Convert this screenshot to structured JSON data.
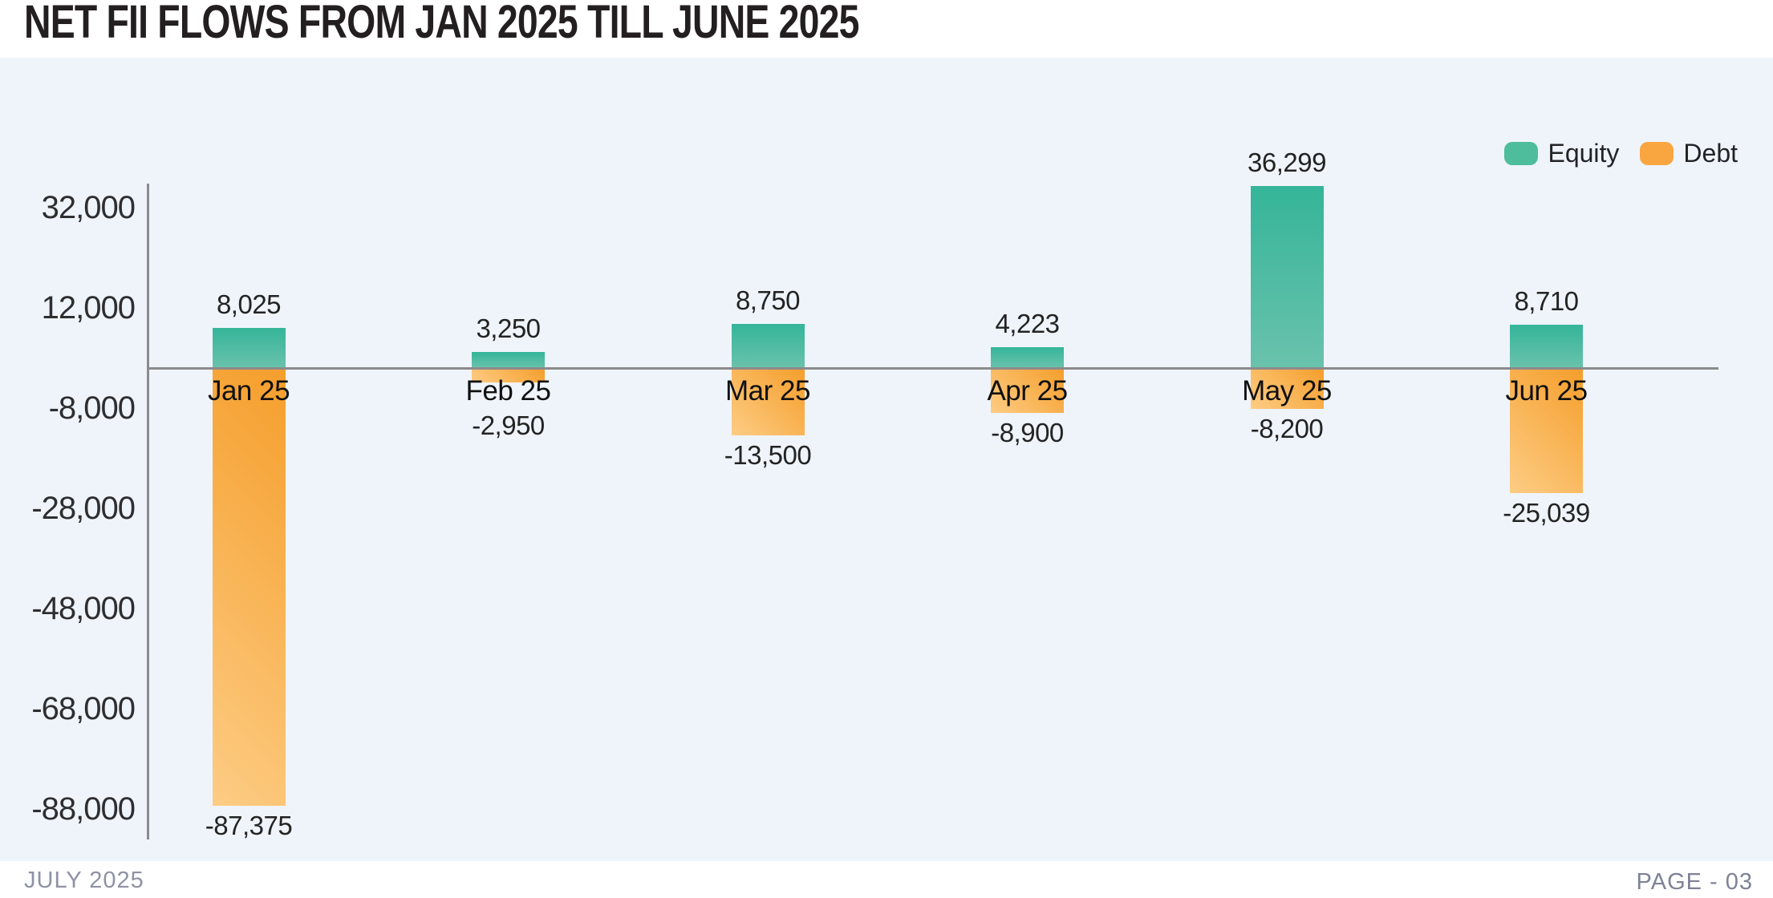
{
  "title": "NET FII FLOWS FROM JAN 2025 TILL JUNE 2025",
  "footer": {
    "left": "JULY 2025",
    "right": "PAGE - 03"
  },
  "colors": {
    "band_background": "#eff4fb",
    "axis_line": "#8b8b8b",
    "equity_top": "#35b599",
    "equity_bottom": "#6ac2ac",
    "debt_dark": "#f59e2b",
    "debt_light": "#fdcc84",
    "legend_equity_swatch": "#4dbd9c",
    "legend_debt_swatch": "#f9a640"
  },
  "chart_data": {
    "type": "bar",
    "title": "NET FII FLOWS FROM JAN 2025 TILL JUNE 2025",
    "categories": [
      "Jan 25",
      "Feb 25",
      "Mar 25",
      "Apr 25",
      "May 25",
      "Jun 25"
    ],
    "series": [
      {
        "name": "Equity",
        "values": [
          8025,
          3250,
          8750,
          4223,
          36299,
          8710
        ],
        "labels": [
          "8,025",
          "3,250",
          "8,750",
          "4,223",
          "36,299",
          "8,710"
        ]
      },
      {
        "name": "Debt",
        "values": [
          -87375,
          -2950,
          -13500,
          -8900,
          -8200,
          -25039
        ],
        "labels": [
          "-87,375",
          "-2,950",
          "-13,500",
          "-8,900",
          "-8,200",
          "-25,039"
        ]
      }
    ],
    "y_ticks": [
      {
        "value": 32000,
        "label": "32,000"
      },
      {
        "value": 12000,
        "label": "12,000"
      },
      {
        "value": -8000,
        "label": "-8,000"
      },
      {
        "value": -28000,
        "label": "-28,000"
      },
      {
        "value": -48000,
        "label": "-48,000"
      },
      {
        "value": -68000,
        "label": "-68,000"
      },
      {
        "value": -88000,
        "label": "-88,000"
      }
    ],
    "ylim": [
      -93500,
      37500
    ],
    "xlabel": "",
    "ylabel": "",
    "grid": false,
    "legend_position": "top-right",
    "bar_value_labels_shown": true
  }
}
